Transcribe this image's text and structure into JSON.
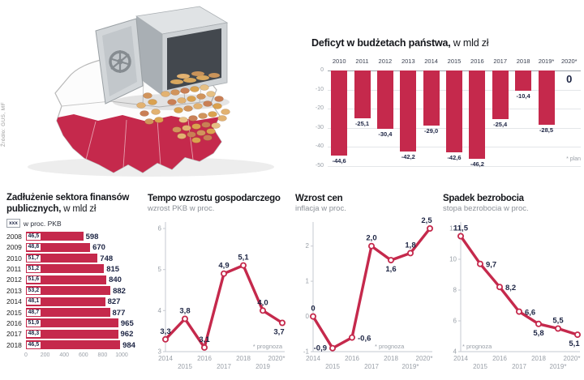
{
  "accent": "#c5294c",
  "navy": "#1d2544",
  "source_note": "Źródło: GUS, MF",
  "chart_data": [
    {
      "id": "deficit",
      "type": "bar",
      "title": "Deficyt w budżetach państwa,",
      "title_suffix": " w mld zł",
      "categories": [
        "2010",
        "2011",
        "2012",
        "2013",
        "2014",
        "2015",
        "2016",
        "2017",
        "2018",
        "2019*",
        "2020*"
      ],
      "values": [
        -44.6,
        -25.1,
        -30.4,
        -42.2,
        -29.0,
        -42.6,
        -46.2,
        -25.4,
        -10.4,
        -28.5,
        0
      ],
      "value_labels": [
        "-44,6",
        "-25,1",
        "-30,4",
        "-42,2",
        "-29,0",
        "-42,6",
        "-46,2",
        "-25,4",
        "-10,4",
        "-28,5",
        "0"
      ],
      "ylim": [
        -50,
        0
      ],
      "yticks": [
        0,
        -10,
        -20,
        -30,
        -40,
        -50
      ],
      "ytick_labels": [
        "0",
        "-10",
        "-20",
        "-30",
        "-40",
        "-50"
      ],
      "note": "* plan"
    },
    {
      "id": "debt",
      "type": "bar-horizontal",
      "title": "Zadłużenie sektora finansów publicznych,",
      "title_suffix": " w mld zł",
      "legend_box": "xxx",
      "legend_label": "w proc. PKB",
      "categories": [
        "2008",
        "2009",
        "2010",
        "2011",
        "2012",
        "2013",
        "2014",
        "2015",
        "2016",
        "2017",
        "2018"
      ],
      "values": [
        598,
        670,
        748,
        815,
        840,
        882,
        827,
        877,
        965,
        962,
        984
      ],
      "pct_labels": [
        "46,5",
        "48,8",
        "51,7",
        "51,2",
        "51,6",
        "53,2",
        "48,1",
        "48,7",
        "51,9",
        "48,3",
        "46,5"
      ],
      "xlim": [
        0,
        1000
      ],
      "xticks": [
        "0",
        "200",
        "400",
        "600",
        "800",
        "1000"
      ]
    },
    {
      "id": "gdp",
      "type": "line",
      "title": "Tempo wzrostu gospodarczego",
      "subtitle": "wzrost PKB w proc.",
      "x": [
        "2014",
        "2015",
        "2016",
        "2017",
        "2018",
        "2019",
        "2020*"
      ],
      "values": [
        3.3,
        3.8,
        3.1,
        4.9,
        5.1,
        4.0,
        3.7
      ],
      "value_labels": [
        "3,3",
        "3,8",
        "3,1",
        "4,9",
        "5,1",
        "4,0",
        "3,7"
      ],
      "label_pos": [
        "above",
        "above",
        "above",
        "above",
        "above",
        "above",
        "below"
      ],
      "ylim": [
        3,
        6
      ],
      "yticks": [
        6,
        5,
        4,
        3
      ],
      "ytick_labels": [
        "6",
        "5",
        "4",
        "3"
      ],
      "note": "* prognoza",
      "note_align": "right"
    },
    {
      "id": "inflation",
      "type": "line",
      "title": "Wzrost cen",
      "subtitle": "inflacja w proc.",
      "x": [
        "2014",
        "2015",
        "2016",
        "2017",
        "2018",
        "2019*",
        "2020*"
      ],
      "values": [
        0,
        -0.9,
        -0.6,
        2.0,
        1.6,
        1.8,
        2.5
      ],
      "value_labels": [
        "0",
        "-0,9",
        "-0,6",
        "2,0",
        "1,6",
        "1,8",
        "2,5"
      ],
      "label_pos": [
        "above",
        "left",
        "right",
        "above",
        "below",
        "above",
        "above"
      ],
      "ylim": [
        -1,
        2.5
      ],
      "yticks": [
        2,
        1,
        0,
        -1
      ],
      "ytick_labels": [
        "2",
        "1",
        "0",
        "-1"
      ],
      "note": "* prognoza",
      "note_align": "center"
    },
    {
      "id": "unemployment",
      "type": "line",
      "title": "Spadek bezrobocia",
      "subtitle": "stopa bezrobocia w proc.",
      "x": [
        "2014",
        "2015",
        "2016",
        "2017",
        "2018",
        "2019*",
        "2020*"
      ],
      "values": [
        11.5,
        9.7,
        8.2,
        6.6,
        5.8,
        5.5,
        5.1
      ],
      "value_labels": [
        "11,5",
        "9,7",
        "8,2",
        "6,6",
        "5,8",
        "5,5",
        "5,1"
      ],
      "label_pos": [
        "above",
        "right",
        "right",
        "right",
        "below",
        "above",
        "below"
      ],
      "ylim": [
        4,
        12
      ],
      "yticks": [
        12,
        10,
        8,
        6,
        4
      ],
      "ytick_labels": [
        "12",
        "10",
        "8",
        "6",
        "4"
      ],
      "note": "* prognoza",
      "note_align": "left"
    }
  ]
}
